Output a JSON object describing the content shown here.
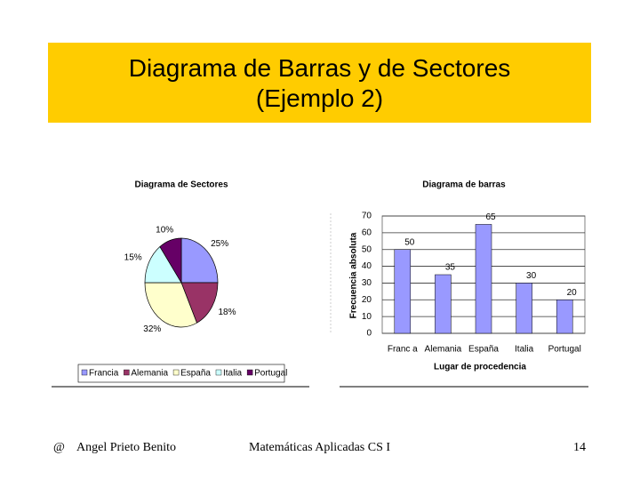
{
  "header": {
    "title": "Diagrama de Barras y de Sectores\n(Ejemplo 2)"
  },
  "chart_data": [
    {
      "type": "pie",
      "title": "Diagrama de Sectores",
      "categories": [
        "Francia",
        "Alemania",
        "España",
        "Italia",
        "Portugal"
      ],
      "values": [
        25,
        18,
        32,
        15,
        10
      ],
      "value_labels": [
        "25%",
        "18%",
        "32%",
        "15%",
        "10%"
      ],
      "colors": [
        "#9999ff",
        "#993366",
        "#ffffcc",
        "#ccffff",
        "#660066"
      ],
      "legend": "bottom"
    },
    {
      "type": "bar",
      "title": "Diagrama de barras",
      "categories": [
        "Franc a",
        "Alemania",
        "España",
        "Italia",
        "Portugal"
      ],
      "values": [
        50,
        35,
        65,
        30,
        20
      ],
      "color": "#9999ff",
      "ylabel": "Frecuencia absoluta",
      "xlabel": "Lugar de procedencia",
      "ylim": [
        0,
        70
      ],
      "yticks": [
        0,
        10,
        20,
        30,
        40,
        50,
        60,
        70
      ],
      "grid": true
    }
  ],
  "footer": {
    "symbol": "@",
    "author": "Angel Prieto Benito",
    "course": "Matemáticas Aplicadas CS I",
    "page": "14"
  }
}
